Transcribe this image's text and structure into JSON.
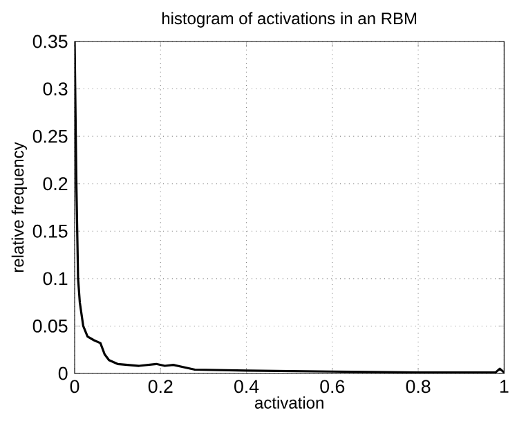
{
  "chart_data": {
    "type": "line",
    "title": "histogram of activations in an RBM",
    "xlabel": "activation",
    "ylabel": "relative frequency",
    "x": [
      0,
      0.004,
      0.008,
      0.012,
      0.02,
      0.03,
      0.045,
      0.06,
      0.07,
      0.08,
      0.1,
      0.15,
      0.19,
      0.21,
      0.23,
      0.28,
      0.4,
      0.6,
      0.8,
      0.98,
      0.99,
      1
    ],
    "series": [
      {
        "color": "#000000",
        "values": [
          0.35,
          0.2,
          0.1,
          0.075,
          0.05,
          0.039,
          0.035,
          0.032,
          0.02,
          0.014,
          0.01,
          0.008,
          0.01,
          0.008,
          0.009,
          0.004,
          0.003,
          0.002,
          0.001,
          0.001,
          0.005,
          0.001
        ]
      }
    ],
    "xlim": [
      0,
      1
    ],
    "ylim": [
      0,
      0.35
    ],
    "xticks": [
      0,
      0.2,
      0.4,
      0.6,
      0.8,
      1
    ],
    "yticks": [
      0,
      0.05,
      0.1,
      0.15,
      0.2,
      0.25,
      0.3,
      0.35
    ],
    "grid": true,
    "line_style": "solid"
  }
}
